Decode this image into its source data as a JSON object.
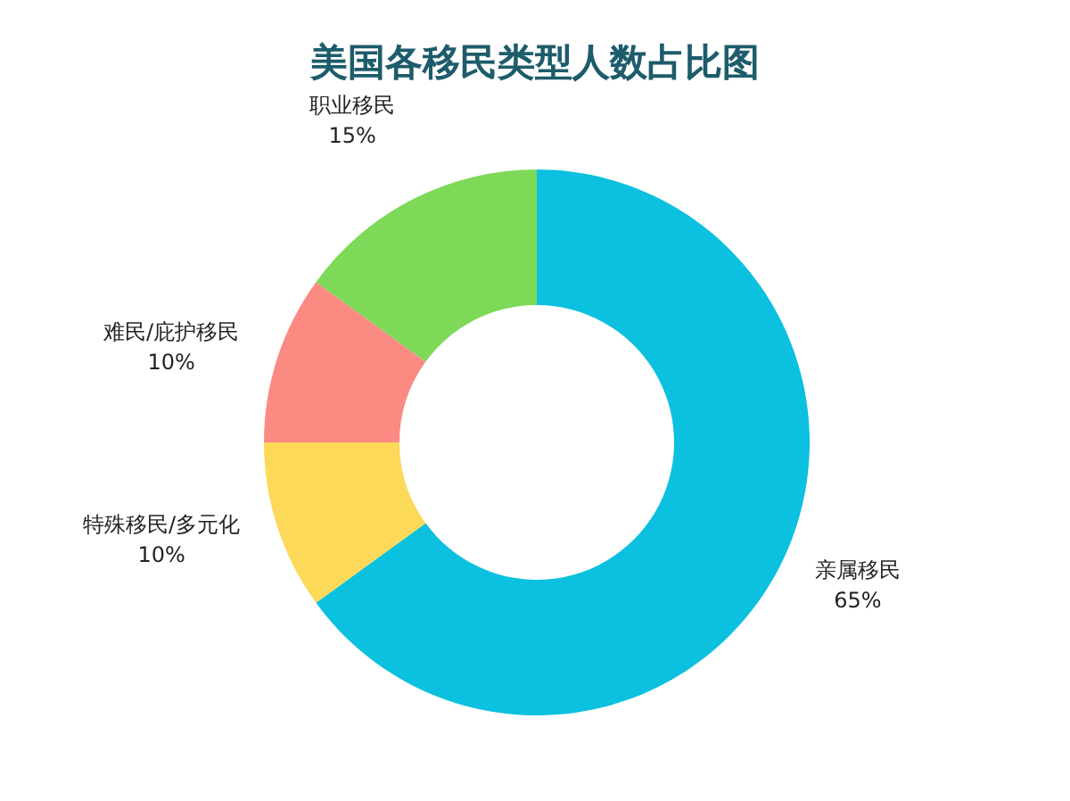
{
  "chart_data": {
    "type": "donut",
    "title": "美国各移民类型人数占比图",
    "categories": [
      "亲属移民",
      "特殊移民/多元化",
      "难民/庇护移民",
      "职业移民"
    ],
    "values": [
      65,
      10,
      10,
      15
    ],
    "colors": [
      "#0cc0df",
      "#fcd958",
      "#fb8a83",
      "#7ed958"
    ],
    "value_labels": [
      "65%",
      "10%",
      "10%",
      "15%"
    ],
    "legend": false
  }
}
